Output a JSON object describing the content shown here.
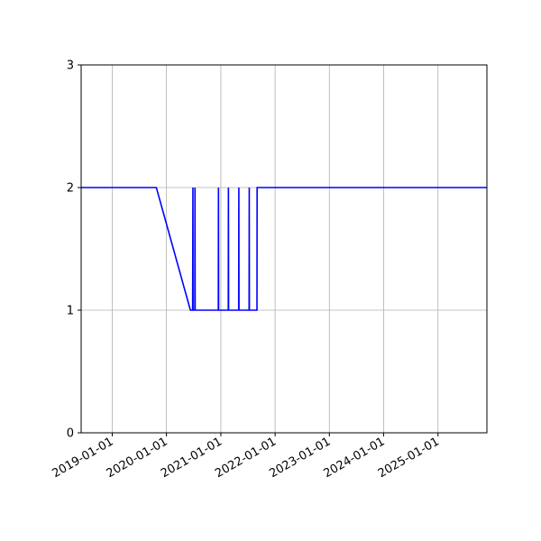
{
  "chart_data": {
    "type": "line",
    "title": "",
    "xlabel": "",
    "ylabel": "",
    "x_axis_type": "date",
    "xlim": [
      "2018-06-06",
      "2025-11-26"
    ],
    "ylim": [
      0,
      3
    ],
    "yticks": [
      0,
      1,
      2,
      3
    ],
    "xticks": [
      "2019-01-01",
      "2020-01-01",
      "2021-01-01",
      "2022-01-01",
      "2023-01-01",
      "2024-01-01",
      "2025-01-01"
    ],
    "grid": true,
    "colors": {
      "series": "#0000ff",
      "grid": "#b0b0b0",
      "axes": "#000000"
    },
    "series": [
      {
        "points": [
          [
            "2018-06-06",
            2
          ],
          [
            "2019-10-25",
            2
          ],
          [
            "2020-06-10",
            1
          ],
          [
            "2020-06-25",
            1
          ],
          [
            "2020-06-27",
            2
          ],
          [
            "2020-06-28",
            1
          ],
          [
            "2020-07-10",
            1
          ],
          [
            "2020-07-11",
            2
          ],
          [
            "2020-07-12",
            1
          ],
          [
            "2020-12-15",
            1
          ],
          [
            "2020-12-16",
            2
          ],
          [
            "2020-12-17",
            1
          ],
          [
            "2021-02-20",
            1
          ],
          [
            "2021-02-21",
            2
          ],
          [
            "2021-02-22",
            1
          ],
          [
            "2021-05-01",
            1
          ],
          [
            "2021-05-02",
            2
          ],
          [
            "2021-05-03",
            1
          ],
          [
            "2021-07-10",
            1
          ],
          [
            "2021-07-11",
            2
          ],
          [
            "2021-07-12",
            1
          ],
          [
            "2021-09-01",
            1
          ],
          [
            "2021-09-02",
            2
          ],
          [
            "2025-11-26",
            2
          ]
        ]
      }
    ]
  }
}
